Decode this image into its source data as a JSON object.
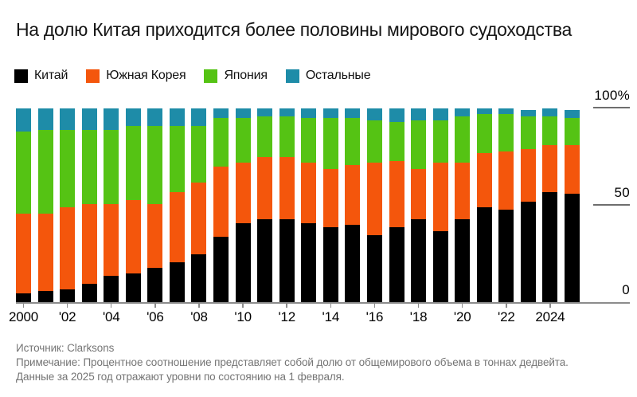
{
  "title": "На долю Китая приходится более половины мирового судоходства",
  "legend": [
    {
      "label": "Китай",
      "color": "#000000"
    },
    {
      "label": "Южная Корея",
      "color": "#f4560c"
    },
    {
      "label": "Япония",
      "color": "#55c314"
    },
    {
      "label": "Остальные",
      "color": "#1e8ca8"
    }
  ],
  "y_axis": {
    "ticks": [
      {
        "label": "100%",
        "value": 100
      },
      {
        "label": "50",
        "value": 50
      },
      {
        "label": "0",
        "value": 0
      }
    ]
  },
  "x_axis": {
    "tick_labels": [
      "2000",
      "'02",
      "'04",
      "'06",
      "'08",
      "'10",
      "'12",
      "'14",
      "'16",
      "'18",
      "'20",
      "'22",
      "2024"
    ]
  },
  "footer": {
    "source": "Источник: Clarksons",
    "note_line1": "Примечание: Процентное соотношение представляет собой долю от общемирового объема в тоннах дедвейта.",
    "note_line2": "Данные за 2025 год отражают уровни по состоянию на 1 февраля."
  },
  "chart_data": {
    "type": "bar",
    "stacked": true,
    "title": "На долю Китая приходится более половины мирового судоходства",
    "unit": "percent of world total, deadweight tons",
    "ylim": [
      0,
      100
    ],
    "grid": false,
    "legend_position": "top-left",
    "categories": [
      2000,
      2001,
      2002,
      2003,
      2004,
      2005,
      2006,
      2007,
      2008,
      2009,
      2010,
      2011,
      2012,
      2013,
      2014,
      2015,
      2016,
      2017,
      2018,
      2019,
      2020,
      2021,
      2022,
      2023,
      2024,
      2025
    ],
    "series": [
      {
        "name": "Китай",
        "color": "#000000",
        "values": [
          5,
          6,
          7,
          10,
          14,
          15,
          18,
          21,
          25,
          34,
          41,
          43,
          43,
          41,
          39,
          40,
          35,
          39,
          43,
          37,
          43,
          49,
          48,
          52,
          57,
          56
        ]
      },
      {
        "name": "Южная Корея",
        "color": "#f4560c",
        "values": [
          41,
          40,
          42,
          41,
          37,
          38,
          33,
          36,
          37,
          36,
          31,
          32,
          32,
          31,
          30,
          31,
          37,
          34,
          26,
          35,
          29,
          28,
          30,
          27,
          24,
          25
        ]
      },
      {
        "name": "Япония",
        "color": "#55c314",
        "values": [
          42,
          43,
          40,
          38,
          38,
          38,
          40,
          34,
          29,
          25,
          23,
          21,
          21,
          23,
          26,
          24,
          22,
          20,
          25,
          22,
          24,
          20,
          19,
          17,
          15,
          14
        ]
      },
      {
        "name": "Остальные",
        "color": "#1e8ca8",
        "values": [
          12,
          11,
          11,
          11,
          11,
          9,
          9,
          9,
          9,
          5,
          5,
          4,
          4,
          5,
          5,
          5,
          6,
          7,
          6,
          6,
          4,
          3,
          3,
          3,
          4,
          4
        ]
      }
    ]
  }
}
